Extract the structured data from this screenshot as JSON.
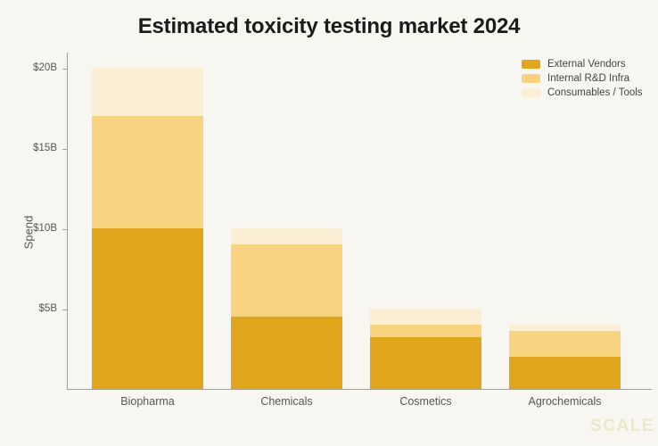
{
  "title": "Estimated toxicity testing market 2024",
  "watermark": "SCALE",
  "colors": {
    "background": "#F8F6F0",
    "title_text": "#1B1B1B",
    "axis_line": "#A09F98",
    "tick_label_text": "#57564F",
    "legend_text": "#454540",
    "watermark_text": "#ECE6CC",
    "series_external_vendors": "#E0A71E",
    "series_internal_rd_infra": "#F7D380",
    "series_consumables_tools": "#FAEED4"
  },
  "chart_data": {
    "type": "bar",
    "stacked": true,
    "title": "Estimated toxicity testing market 2024",
    "xlabel": "",
    "ylabel": "Spend",
    "categories": [
      "Biopharma",
      "Chemicals",
      "Cosmetics",
      "Agrochemicals"
    ],
    "series": [
      {
        "name": "External Vendors",
        "color": "#E0A71E",
        "values": [
          10,
          4.5,
          3.25,
          2.0
        ]
      },
      {
        "name": "Internal R&D Infra",
        "color": "#F7D380",
        "values": [
          7,
          4.5,
          0.75,
          1.6
        ]
      },
      {
        "name": "Consumables / Tools",
        "color": "#FAEED4",
        "values": [
          3,
          1.0,
          1.0,
          0.4
        ]
      }
    ],
    "stack_totals": [
      20,
      10,
      5,
      4
    ],
    "yticks": [
      {
        "label": "$5B",
        "value": 5
      },
      {
        "label": "$10B",
        "value": 10
      },
      {
        "label": "$15B",
        "value": 15
      },
      {
        "label": "$20B",
        "value": 20
      }
    ],
    "ylim": [
      0,
      21
    ],
    "grid": false,
    "legend_position": "top-right"
  }
}
